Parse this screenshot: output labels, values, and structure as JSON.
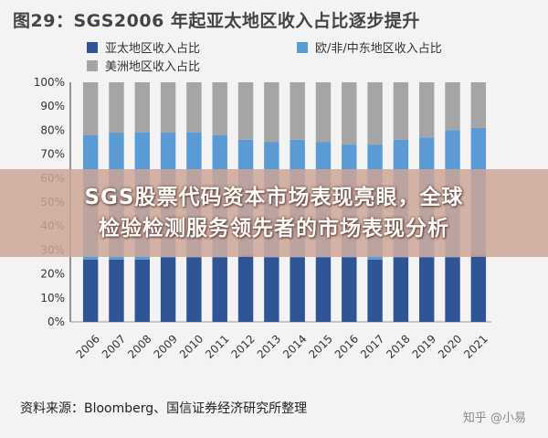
{
  "title": "图29：SGS2006 年起亚太地区收入占比逐步提升",
  "legend": [
    {
      "label": "亚太地区收入占比",
      "color": "#2f5597"
    },
    {
      "label": "欧/非/中东地区收入占比",
      "color": "#5b9bd5"
    },
    {
      "label": "美洲地区收入占比",
      "color": "#a5a5a5"
    }
  ],
  "overlay": {
    "line1": "SGS股票代码资本市场表现亮眼，全球",
    "line2": "检验检测服务领先者的市场表现分析"
  },
  "source": "资料来源：Bloomberg、国信证券经济研究所整理",
  "watermark": "知乎 @小易",
  "chart_data": {
    "type": "bar",
    "stacked": true,
    "categories": [
      "2006",
      "2007",
      "2008",
      "2009",
      "2010",
      "2011",
      "2012",
      "2013",
      "2014",
      "2015",
      "2016",
      "2017",
      "2018",
      "2019",
      "2020",
      "2021"
    ],
    "series": [
      {
        "name": "亚太地区收入占比",
        "color": "#2f5597",
        "values": [
          26,
          26,
          26,
          27,
          27,
          27,
          28,
          27,
          27,
          27,
          27,
          26,
          27,
          27,
          27,
          28
        ]
      },
      {
        "name": "欧/非/中东地区收入占比",
        "color": "#5b9bd5",
        "values": [
          52,
          53,
          53,
          52,
          52,
          51,
          48,
          48,
          49,
          48,
          47,
          48,
          49,
          50,
          53,
          53
        ]
      },
      {
        "name": "美洲地区收入占比",
        "color": "#a5a5a5",
        "values": [
          22,
          21,
          21,
          21,
          21,
          22,
          24,
          25,
          24,
          25,
          26,
          26,
          24,
          23,
          20,
          19
        ]
      }
    ],
    "ylim": [
      0,
      100
    ],
    "yticks": [
      "0%",
      "10%",
      "20%",
      "30%",
      "40%",
      "50%",
      "60%",
      "70%",
      "80%",
      "90%",
      "100%"
    ],
    "grid": false
  }
}
